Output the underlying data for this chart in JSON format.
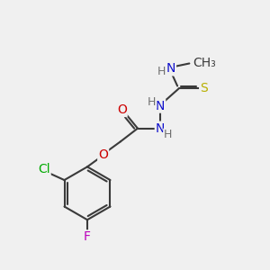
{
  "bg_color": "#f0f0f0",
  "bond_color": "#3a3a3a",
  "bond_width": 1.5,
  "atom_colors": {
    "N": "#1010cc",
    "O": "#cc0000",
    "S": "#b8b000",
    "Cl": "#00aa00",
    "F": "#bb00bb",
    "H": "#707070",
    "C": "#3a3a3a"
  },
  "font_size": 10,
  "fig_size": [
    3.0,
    3.0
  ],
  "dpi": 100
}
